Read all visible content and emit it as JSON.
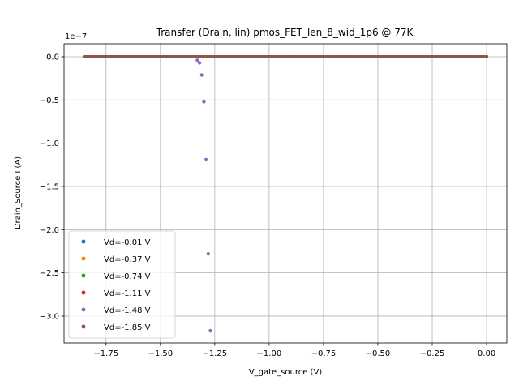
{
  "chart_data": {
    "type": "scatter",
    "title": "Transfer (Drain, lin) pmos_FET_len_8_wid_1p6 @ 77K",
    "xlabel": "V_gate_source (V)",
    "ylabel": "Drain_Source I (A)",
    "y_offset_label": "1e−7",
    "xlim": [
      -1.943,
      0.093
    ],
    "ylim": [
      -3.31e-07,
      1.5e-08
    ],
    "x_ticks": [
      -1.75,
      -1.5,
      -1.25,
      -1.0,
      -0.75,
      -0.5,
      -0.25,
      0.0
    ],
    "x_tick_labels": [
      "−1.75",
      "−1.50",
      "−1.25",
      "−1.00",
      "−0.75",
      "−0.50",
      "−0.25",
      "0.00"
    ],
    "y_ticks": [
      0,
      -5e-08,
      -1e-07,
      -1.5e-07,
      -2e-07,
      -2.5e-07,
      -3e-07
    ],
    "y_tick_labels": [
      "0.0",
      "−0.5",
      "−1.0",
      "−1.5",
      "−2.0",
      "−2.5",
      "−3.0"
    ],
    "grid": true,
    "legend_position": "lower-left",
    "sweep": {
      "x_start": -1.85,
      "x_end": 0.0,
      "points": 186
    },
    "series": [
      {
        "name": "Vd=-0.01 V",
        "color": "#1f77b4",
        "baseline": 0,
        "extra_points": []
      },
      {
        "name": "Vd=-0.37 V",
        "color": "#ff7f0e",
        "baseline": 0,
        "extra_points": []
      },
      {
        "name": "Vd=-0.74 V",
        "color": "#2ca02c",
        "baseline": 0,
        "extra_points": []
      },
      {
        "name": "Vd=-1.11 V",
        "color": "#d62728",
        "baseline": 0,
        "extra_points": []
      },
      {
        "name": "Vd=-1.48 V",
        "color": "#9467bd",
        "baseline": 0,
        "extra_points": [
          {
            "x": -1.33,
            "y": -4e-09
          },
          {
            "x": -1.32,
            "y": -7e-09
          },
          {
            "x": -1.31,
            "y": -2.1e-08
          },
          {
            "x": -1.3,
            "y": -5.2e-08
          },
          {
            "x": -1.29,
            "y": -1.19e-07
          },
          {
            "x": -1.28,
            "y": -2.28e-07
          },
          {
            "x": -1.27,
            "y": -3.17e-07
          }
        ]
      },
      {
        "name": "Vd=-1.85 V",
        "color": "#8c564b",
        "baseline": 0,
        "extra_points": []
      }
    ]
  }
}
